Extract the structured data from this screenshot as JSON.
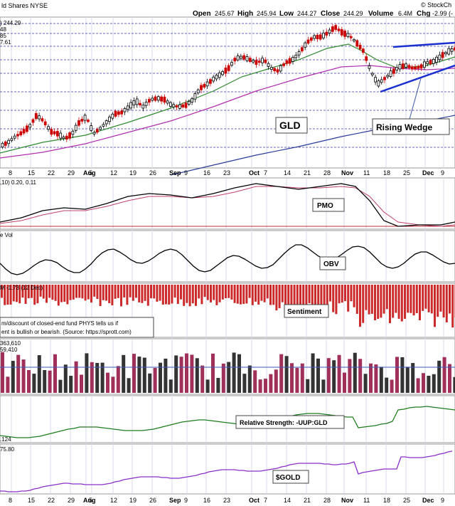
{
  "header": {
    "symbol_text": "ld Shares NYSE",
    "stockcharts": "© StockCh",
    "open_label": "Open",
    "open": "245.67",
    "high_label": "High",
    "high": "245.94",
    "low_label": "Low",
    "low": "244.27",
    "close_label": "Close",
    "close": "244.29",
    "volume_label": "Volume",
    "volume": "6.4M",
    "chg_label": "Chg",
    "chg": "-2.99 (-"
  },
  "price_legend": {
    "price": ") 244.29",
    "ma1": "48",
    "ma2": "85",
    "ma3": "7.61"
  },
  "labels": {
    "gld": "GLD",
    "rising_wedge": "Rising Wedge",
    "pmo": "PMO",
    "obv": "OBV",
    "sentiment": "Sentiment",
    "relative_strength": "Relative Strength: -UUP:GLD",
    "gold": "$GOLD"
  },
  "panel_headers": {
    "pmo": ",10) 0.20, 0.11",
    "obv": "e Vol",
    "sentiment": "M -1.73 (12 Dec)",
    "sentiment_note_1": "m/discount of closed-end fund PHYS tells us if",
    "sentiment_note_2": "ent is bullish or bearish. (Source: https://sprott.com)",
    "vol_1": "363,610",
    "vol_2": "59,410",
    "rs": ".124",
    "gold": "75.80"
  },
  "x_axis": [
    "8",
    "15",
    "22",
    "29",
    "Aug",
    "5",
    "12",
    "19",
    "26",
    "Sep",
    "9",
    "16",
    "23",
    "Oct",
    "7",
    "14",
    "21",
    "28",
    "Nov",
    "11",
    "18",
    "25",
    "Dec",
    "9"
  ],
  "colors": {
    "up": "#000000",
    "down": "#cc0000",
    "ma_green": "#2e8b2e",
    "ma_magenta": "#b030b0",
    "ma_blue": "#2a3c9a",
    "wedge": "#1a2fd0",
    "pmo_black": "#000000",
    "pmo_signal": "#c0406a",
    "sentiment": "#cc2a2a",
    "gold_purple": "#8b2fc9",
    "rs_green": "#1e7d1e",
    "vol_maroon": "#a0305a"
  },
  "chart_data": {
    "type": "candlestick",
    "title": "GLD",
    "dates": [
      "Jul 8",
      "Jul 15",
      "Jul 22",
      "Jul 29",
      "Aug 5",
      "Aug 12",
      "Aug 19",
      "Aug 26",
      "Sep 9",
      "Sep 16",
      "Sep 23",
      "Oct 7",
      "Oct 14",
      "Oct 21",
      "Oct 28",
      "Nov 11",
      "Nov 18",
      "Nov 25",
      "Dec 9"
    ],
    "last": {
      "open": 245.67,
      "high": 245.94,
      "low": 244.27,
      "close": 244.29,
      "volume": "6.4M"
    },
    "indicators": [
      "PMO",
      "OBV",
      "Sentiment",
      "Volume",
      "Relative Strength: -UUP:GLD",
      "$GOLD"
    ],
    "pmo": {
      "values": [
        0.2,
        0.11
      ]
    },
    "sentiment_value": -1.73,
    "annotations": [
      "GLD",
      "Rising Wedge"
    ]
  }
}
